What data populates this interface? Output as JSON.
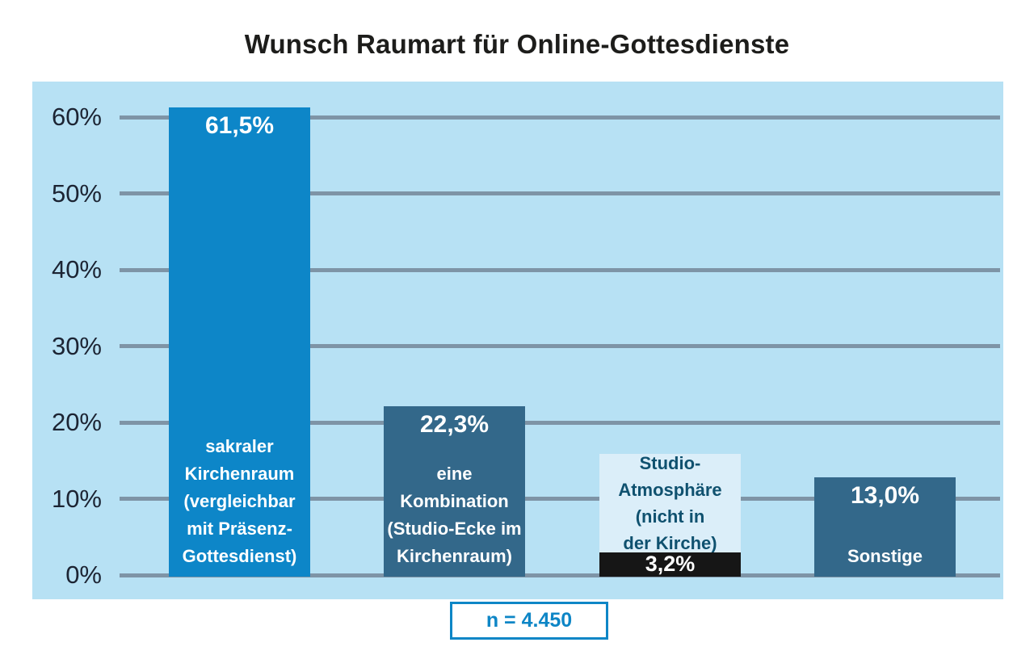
{
  "title": "Wunsch Raumart für Online-Gottesdienste",
  "sample_note": "n = 4.450",
  "colors": {
    "page_bg": "#ffffff",
    "panel_bg": "#b7e1f4",
    "gridline": "#7e94a6",
    "axis_label_text": "#1c2433",
    "title_text": "#1d1d1b",
    "note_accent": "#0e86c6",
    "note_bg": "#ffffff"
  },
  "chart_data": {
    "type": "bar",
    "title": "Wunsch Raumart für Online-Gottesdienste",
    "xlabel": "",
    "ylabel": "",
    "ylim": [
      0,
      64
    ],
    "grid": true,
    "yticks": [
      0,
      10,
      20,
      30,
      40,
      50,
      60
    ],
    "ytick_labels": [
      "0%",
      "10%",
      "20%",
      "30%",
      "40%",
      "50%",
      "60%"
    ],
    "sample_size_label": "n = 4.450",
    "categories": [
      "sakraler Kirchenraum (vergleichbar mit Präsenz-Gottesdienst)",
      "eine Kombination (Studio-Ecke im Kirchenraum)",
      "Studio-Atmosphäre (nicht in der Kirche)",
      "Sonstige"
    ],
    "values": [
      61.5,
      22.3,
      3.2,
      13.0
    ],
    "bars": [
      {
        "value": 61.5,
        "value_label": "61,5%",
        "category_lines": [
          "sakraler",
          "Kirchenraum",
          "(vergleichbar",
          "mit Präsenz-",
          "Gottesdienst)"
        ],
        "color": "#0d86c8",
        "text_color": "#ffffff",
        "label_placement": "inside"
      },
      {
        "value": 22.3,
        "value_label": "22,3%",
        "category_lines": [
          "eine",
          "Kombination",
          "(Studio-Ecke im",
          "Kirchenraum)"
        ],
        "color": "#33688a",
        "text_color": "#ffffff",
        "label_placement": "inside"
      },
      {
        "value": 3.2,
        "value_label": "3,2%",
        "category_lines": [
          "Studio-",
          "Atmosphäre",
          "(nicht in",
          "der Kirche)"
        ],
        "color": "#161616",
        "text_color": "#ffffff",
        "label_placement": "box-above",
        "label_box_bg": "#dbeef9",
        "label_box_text": "#0f516f"
      },
      {
        "value": 13.0,
        "value_label": "13,0%",
        "category_lines": [
          "Sonstige"
        ],
        "color": "#33688a",
        "text_color": "#ffffff",
        "label_placement": "inside"
      }
    ]
  }
}
